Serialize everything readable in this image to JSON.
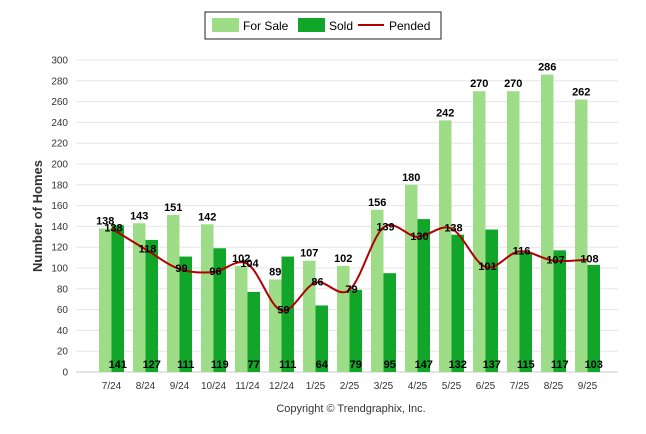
{
  "chart_data": {
    "type": "bar",
    "ylabel": "Number of Homes",
    "xlabel": "",
    "ylim": [
      0,
      300
    ],
    "yticks": [
      0,
      20,
      40,
      60,
      80,
      100,
      120,
      140,
      160,
      180,
      200,
      220,
      240,
      260,
      280,
      300
    ],
    "categories": [
      "7/24",
      "8/24",
      "9/24",
      "10/24",
      "11/24",
      "12/24",
      "1/25",
      "2/25",
      "3/25",
      "4/25",
      "5/25",
      "6/25",
      "7/25",
      "8/25",
      "9/25"
    ],
    "series": [
      {
        "name": "For Sale",
        "kind": "bar",
        "values": [
          138,
          143,
          151,
          142,
          102,
          89,
          107,
          102,
          156,
          180,
          242,
          270,
          270,
          286,
          262
        ]
      },
      {
        "name": "Sold",
        "kind": "bar",
        "values": [
          141,
          127,
          111,
          119,
          77,
          111,
          64,
          79,
          95,
          147,
          132,
          137,
          115,
          117,
          103
        ]
      },
      {
        "name": "Pended",
        "kind": "line",
        "values": [
          138,
          118,
          99,
          96,
          104,
          59,
          86,
          79,
          139,
          130,
          138,
          101,
          116,
          107,
          108
        ]
      }
    ],
    "legend": {
      "placement": "top-center",
      "items": [
        "For Sale",
        "Sold",
        "Pended"
      ]
    },
    "colors": {
      "for_sale": "#9ddd88",
      "sold": "#11a52a",
      "pended": "#b20000",
      "grid": "#e6e6e6"
    },
    "grid": true
  },
  "footer": {
    "copyright": "Copyright © Trendgraphix, Inc."
  }
}
